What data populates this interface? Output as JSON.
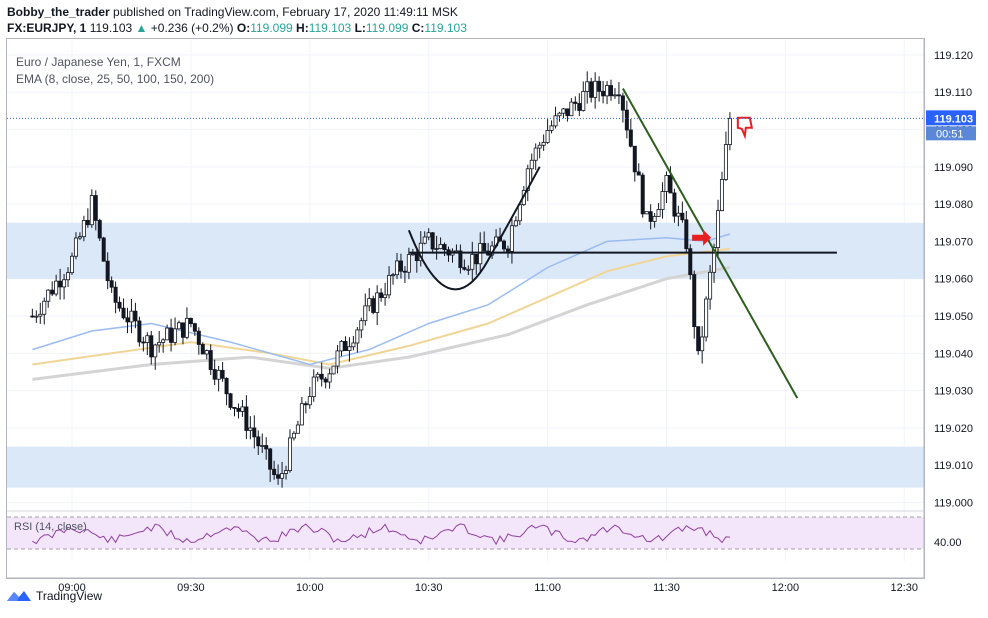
{
  "header": {
    "author": "Bobby_the_trader",
    "published": "published on TradingView.com, February 17, 2020 11:49:11 MSK",
    "symbol": "FX:EURJPY, 1",
    "last": "119.103",
    "change_arrow": "▲",
    "change": "+0.236 (+0.2%)",
    "o_label": "O:",
    "o_value": "119.099",
    "h_label": "H:",
    "h_value": "119.103",
    "l_label": "L:",
    "l_value": "119.099",
    "c_label": "C:",
    "c_value": "119.103"
  },
  "legend": {
    "title": "Euro / Japanese Yen, 1, FXCM",
    "ema": "EMA (8, close, 25, 50, 100, 150, 200)"
  },
  "rsi_label": "RSI (14, close)",
  "footer": {
    "brand": "TradingView",
    "logo_icon": "tradingview-logo-icon"
  },
  "colors": {
    "up": "#26a69a",
    "candle": "#131722",
    "zone": "#dbe8f8",
    "ema_blue": "#9bbcf0",
    "ema_gold": "#f0d696",
    "ema_grey": "#d4d4d4",
    "trendline": "#2e5e1e",
    "arrow": "#e62020",
    "rsi_line": "#8e3fa0",
    "rsi_band": "#f3e6fa",
    "price_badge": "#2962ff",
    "timer_badge": "#5b88d6"
  },
  "chart_data": {
    "type": "candlestick",
    "title": "Euro / Japanese Yen, 1, FXCM",
    "y_ticks": [
      "119.120",
      "119.110",
      "119.100",
      "119.090",
      "119.080",
      "119.070",
      "119.060",
      "119.050",
      "119.040",
      "119.030",
      "119.020",
      "119.010",
      "119.000"
    ],
    "ylim": [
      118.998,
      119.124
    ],
    "x_ticks": [
      "09:00",
      "09:30",
      "10:00",
      "10:30",
      "11:00",
      "11:30",
      "12:00",
      "12:30"
    ],
    "current_price": "119.103",
    "countdown": "00:51",
    "rsi_tick": "40.00",
    "zones": [
      [
        119.06,
        119.075
      ],
      [
        119.004,
        119.015
      ]
    ],
    "grid": true,
    "candles_approx": [
      {
        "time": "08:50",
        "price": 119.05
      },
      {
        "time": "09:00",
        "price": 119.065
      },
      {
        "time": "09:05",
        "price": 119.08
      },
      {
        "time": "09:10",
        "price": 119.055
      },
      {
        "time": "09:20",
        "price": 119.042
      },
      {
        "time": "09:30",
        "price": 119.048
      },
      {
        "time": "09:40",
        "price": 119.028
      },
      {
        "time": "09:45",
        "price": 119.02
      },
      {
        "time": "09:52",
        "price": 119.005
      },
      {
        "time": "10:00",
        "price": 119.03
      },
      {
        "time": "10:05",
        "price": 119.036
      },
      {
        "time": "10:15",
        "price": 119.052
      },
      {
        "time": "10:22",
        "price": 119.062
      },
      {
        "time": "10:30",
        "price": 119.07
      },
      {
        "time": "10:40",
        "price": 119.065
      },
      {
        "time": "10:50",
        "price": 119.07
      },
      {
        "time": "10:55",
        "price": 119.09
      },
      {
        "time": "11:00",
        "price": 119.1
      },
      {
        "time": "11:10",
        "price": 119.11
      },
      {
        "time": "11:18",
        "price": 119.112
      },
      {
        "time": "11:25",
        "price": 119.075
      },
      {
        "time": "11:30",
        "price": 119.085
      },
      {
        "time": "11:35",
        "price": 119.07
      },
      {
        "time": "11:38",
        "price": 119.038
      },
      {
        "time": "11:42",
        "price": 119.068
      },
      {
        "time": "11:46",
        "price": 119.103
      }
    ]
  }
}
